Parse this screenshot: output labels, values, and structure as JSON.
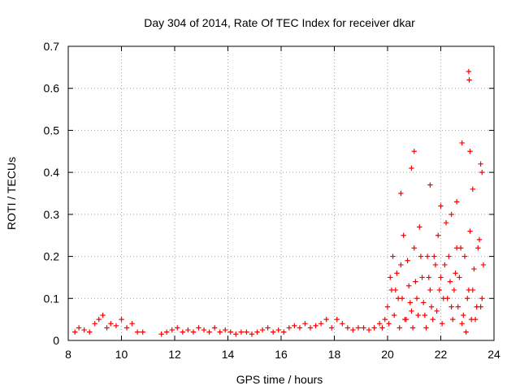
{
  "chart_data": {
    "type": "scatter",
    "title": "Day 304 of 2014, Rate Of TEC Index for receiver dkar",
    "xlabel": "GPS time / hours",
    "ylabel": "ROTI / TECUs",
    "xlim": [
      8,
      24
    ],
    "ylim": [
      0,
      0.7
    ],
    "xticks": [
      8,
      10,
      12,
      14,
      16,
      18,
      20,
      22,
      24
    ],
    "yticks": [
      0,
      0.1,
      0.2,
      0.3,
      0.4,
      0.5,
      0.6,
      0.7
    ],
    "xtick_labels": [
      "8",
      "10",
      "12",
      "14",
      "16",
      "18",
      "20",
      "22",
      "24"
    ],
    "ytick_labels": [
      "0",
      "0.1",
      "0.2",
      "0.3",
      "0.4",
      "0.5",
      "0.6",
      "0.7"
    ],
    "grid": true,
    "marker": "plus",
    "marker_color": "#ff0000",
    "series": [
      {
        "name": "ROTI",
        "x": [
          8.25,
          8.4,
          8.6,
          8.8,
          9.0,
          9.15,
          9.3,
          9.45,
          9.6,
          9.8,
          10.0,
          10.2,
          10.4,
          10.6,
          10.8,
          11.5,
          11.7,
          11.9,
          12.1,
          12.3,
          12.5,
          12.7,
          12.9,
          13.1,
          13.3,
          13.5,
          13.7,
          13.9,
          14.1,
          14.3,
          14.5,
          14.7,
          14.9,
          15.1,
          15.3,
          15.5,
          15.7,
          15.9,
          16.1,
          16.3,
          16.5,
          16.7,
          16.9,
          17.1,
          17.3,
          17.5,
          17.7,
          17.9,
          18.1,
          18.3,
          18.5,
          18.7,
          18.9,
          19.1,
          19.3,
          19.5,
          19.7,
          19.9,
          19.8,
          20.0,
          20.1,
          20.2,
          20.3,
          20.4,
          20.5,
          20.6,
          20.7,
          20.8,
          20.9,
          21.0,
          21.1,
          21.2,
          21.3,
          21.4,
          21.5,
          21.6,
          21.7,
          21.8,
          21.9,
          22.0,
          22.1,
          22.2,
          22.3,
          22.4,
          22.5,
          22.6,
          22.7,
          22.8,
          22.9,
          23.0,
          23.1,
          23.2,
          23.3,
          23.4,
          23.5,
          23.6,
          20.05,
          20.15,
          20.25,
          20.35,
          20.45,
          20.55,
          20.65,
          20.75,
          20.85,
          20.95,
          21.05,
          21.15,
          21.25,
          21.35,
          21.45,
          21.55,
          21.65,
          21.75,
          21.85,
          21.95,
          22.05,
          22.15,
          22.25,
          22.35,
          22.45,
          22.55,
          22.65,
          22.75,
          22.85,
          22.95,
          23.05,
          23.15,
          23.25,
          23.35,
          23.45,
          23.55,
          20.5,
          20.9,
          21.0,
          21.6,
          22.0,
          22.4,
          22.6,
          22.8,
          23.05,
          23.07,
          23.1,
          23.2,
          23.5,
          23.55
        ],
        "y": [
          0.02,
          0.03,
          0.025,
          0.02,
          0.04,
          0.05,
          0.06,
          0.03,
          0.04,
          0.035,
          0.05,
          0.03,
          0.04,
          0.02,
          0.02,
          0.015,
          0.02,
          0.025,
          0.03,
          0.02,
          0.025,
          0.02,
          0.03,
          0.025,
          0.02,
          0.03,
          0.02,
          0.025,
          0.02,
          0.015,
          0.02,
          0.02,
          0.015,
          0.02,
          0.025,
          0.03,
          0.02,
          0.025,
          0.02,
          0.03,
          0.035,
          0.03,
          0.04,
          0.03,
          0.035,
          0.04,
          0.05,
          0.03,
          0.05,
          0.04,
          0.03,
          0.025,
          0.03,
          0.03,
          0.025,
          0.03,
          0.04,
          0.05,
          0.03,
          0.08,
          0.15,
          0.2,
          0.12,
          0.1,
          0.18,
          0.25,
          0.05,
          0.13,
          0.07,
          0.22,
          0.1,
          0.27,
          0.15,
          0.06,
          0.2,
          0.12,
          0.05,
          0.18,
          0.25,
          0.15,
          0.1,
          0.28,
          0.2,
          0.08,
          0.12,
          0.22,
          0.15,
          0.04,
          0.2,
          0.1,
          0.26,
          0.12,
          0.05,
          0.22,
          0.08,
          0.18,
          0.04,
          0.12,
          0.06,
          0.16,
          0.03,
          0.1,
          0.05,
          0.19,
          0.09,
          0.03,
          0.14,
          0.06,
          0.2,
          0.09,
          0.03,
          0.15,
          0.08,
          0.2,
          0.07,
          0.12,
          0.04,
          0.18,
          0.1,
          0.14,
          0.05,
          0.16,
          0.08,
          0.22,
          0.06,
          0.02,
          0.12,
          0.05,
          0.17,
          0.08,
          0.24,
          0.1,
          0.35,
          0.41,
          0.45,
          0.37,
          0.32,
          0.3,
          0.33,
          0.47,
          0.64,
          0.62,
          0.45,
          0.36,
          0.42,
          0.4
        ]
      }
    ]
  }
}
